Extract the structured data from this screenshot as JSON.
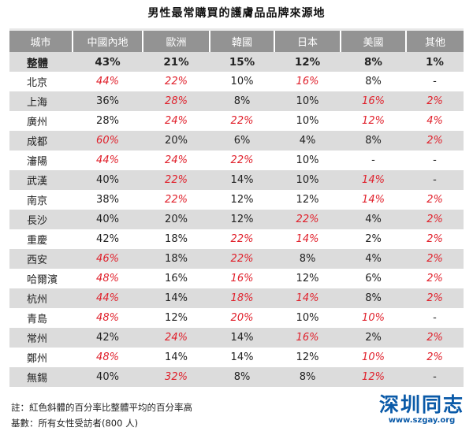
{
  "title": "男性最常購買的護膚品品牌來源地",
  "chart_data": {
    "type": "table",
    "columns": [
      "城市",
      "中國內地",
      "歐洲",
      "韓國",
      "日本",
      "美國",
      "其他"
    ],
    "total": {
      "label": "整體",
      "values": [
        "43%",
        "21%",
        "15%",
        "12%",
        "8%",
        "1%"
      ]
    },
    "rows": [
      {
        "city": "北京",
        "values": [
          "44%",
          "22%",
          "10%",
          "16%",
          "8%",
          "-"
        ],
        "highlight": [
          true,
          true,
          false,
          true,
          false,
          false
        ]
      },
      {
        "city": "上海",
        "values": [
          "36%",
          "28%",
          "8%",
          "10%",
          "16%",
          "2%"
        ],
        "highlight": [
          false,
          true,
          false,
          false,
          true,
          true
        ]
      },
      {
        "city": "廣州",
        "values": [
          "28%",
          "24%",
          "22%",
          "10%",
          "12%",
          "4%"
        ],
        "highlight": [
          false,
          true,
          true,
          false,
          true,
          true
        ]
      },
      {
        "city": "成都",
        "values": [
          "60%",
          "20%",
          "6%",
          "4%",
          "8%",
          "2%"
        ],
        "highlight": [
          true,
          false,
          false,
          false,
          false,
          true
        ]
      },
      {
        "city": "瀋陽",
        "values": [
          "44%",
          "24%",
          "22%",
          "10%",
          "-",
          "-"
        ],
        "highlight": [
          true,
          true,
          true,
          false,
          false,
          false
        ]
      },
      {
        "city": "武漢",
        "values": [
          "40%",
          "22%",
          "14%",
          "10%",
          "14%",
          "-"
        ],
        "highlight": [
          false,
          true,
          false,
          false,
          true,
          false
        ]
      },
      {
        "city": "南京",
        "values": [
          "38%",
          "22%",
          "12%",
          "12%",
          "14%",
          "2%"
        ],
        "highlight": [
          false,
          true,
          false,
          false,
          true,
          true
        ]
      },
      {
        "city": "長沙",
        "values": [
          "40%",
          "20%",
          "12%",
          "22%",
          "4%",
          "2%"
        ],
        "highlight": [
          false,
          false,
          false,
          true,
          false,
          true
        ]
      },
      {
        "city": "重慶",
        "values": [
          "42%",
          "18%",
          "22%",
          "14%",
          "2%",
          "2%"
        ],
        "highlight": [
          false,
          false,
          true,
          true,
          false,
          true
        ]
      },
      {
        "city": "西安",
        "values": [
          "46%",
          "18%",
          "22%",
          "8%",
          "4%",
          "2%"
        ],
        "highlight": [
          true,
          false,
          true,
          false,
          false,
          true
        ]
      },
      {
        "city": "哈爾濱",
        "values": [
          "48%",
          "16%",
          "16%",
          "12%",
          "6%",
          "2%"
        ],
        "highlight": [
          true,
          false,
          true,
          false,
          false,
          true
        ]
      },
      {
        "city": "杭州",
        "values": [
          "44%",
          "14%",
          "18%",
          "14%",
          "8%",
          "2%"
        ],
        "highlight": [
          true,
          false,
          true,
          true,
          false,
          true
        ]
      },
      {
        "city": "青島",
        "values": [
          "48%",
          "12%",
          "20%",
          "10%",
          "10%",
          "-"
        ],
        "highlight": [
          true,
          false,
          true,
          false,
          true,
          false
        ]
      },
      {
        "city": "常州",
        "values": [
          "42%",
          "24%",
          "14%",
          "16%",
          "2%",
          "2%"
        ],
        "highlight": [
          false,
          true,
          false,
          true,
          false,
          true
        ]
      },
      {
        "city": "鄭州",
        "values": [
          "48%",
          "14%",
          "14%",
          "12%",
          "10%",
          "2%"
        ],
        "highlight": [
          true,
          false,
          false,
          false,
          true,
          true
        ]
      },
      {
        "city": "無錫",
        "values": [
          "40%",
          "32%",
          "8%",
          "8%",
          "12%",
          "-"
        ],
        "highlight": [
          false,
          true,
          false,
          false,
          true,
          false
        ]
      }
    ],
    "highlight_color": "#e0202b"
  },
  "notes": {
    "line1": "註：紅色斜體的百分率比整體平均的百分率高",
    "line2": "基數：所有女性受訪者(800 人)"
  },
  "watermark": {
    "text": "深圳同志",
    "url": "www.szgay.org"
  }
}
